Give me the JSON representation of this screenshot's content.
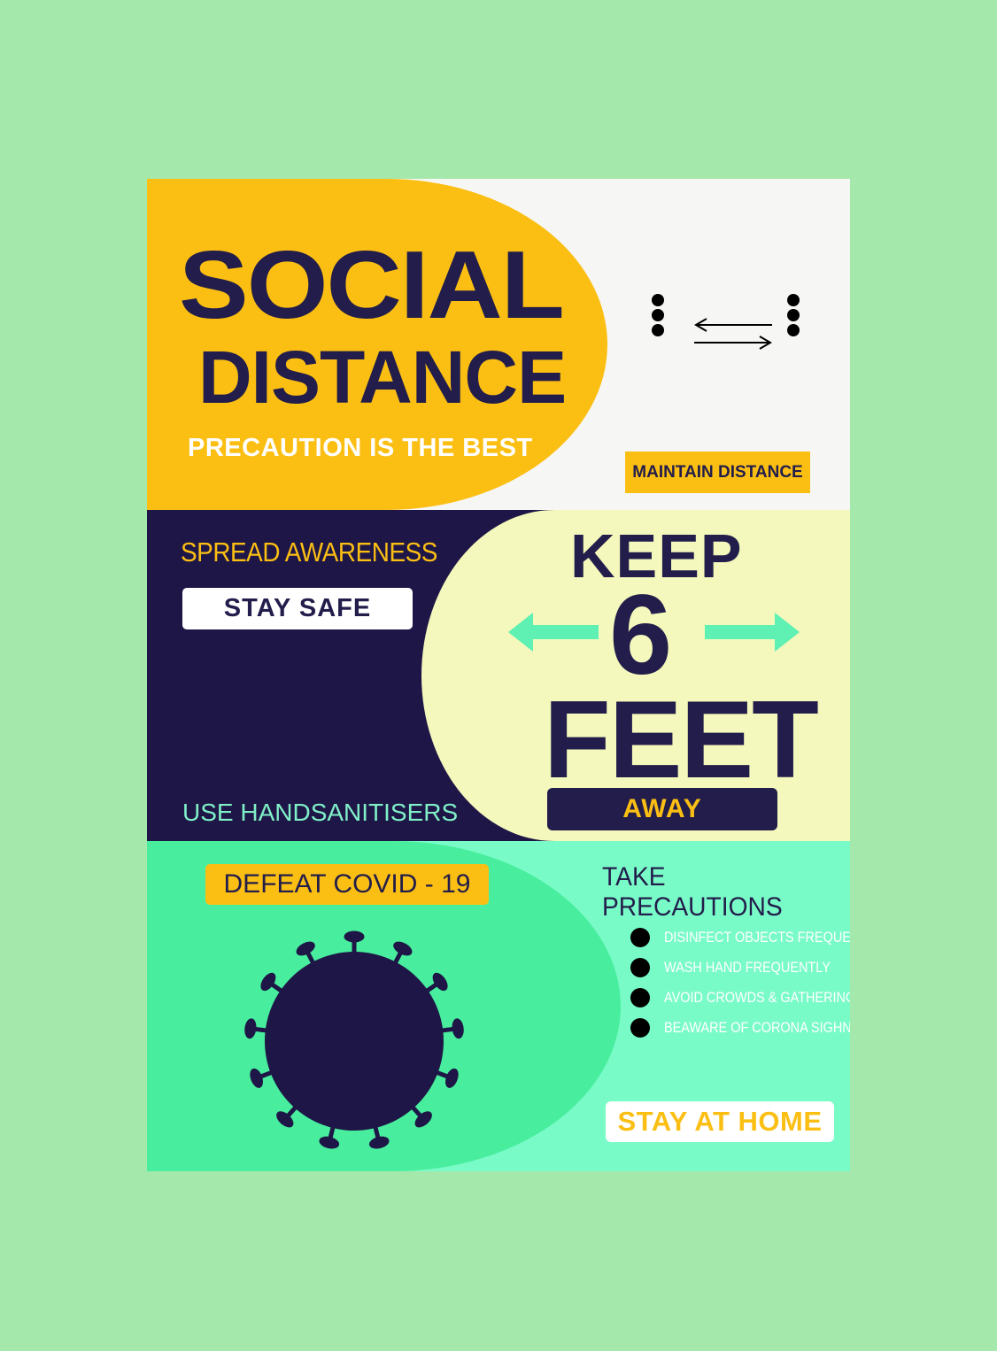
{
  "header": {
    "title_line1": "SOCIAL",
    "title_line2": "DISTANCE",
    "subtitle": "PRECAUTION IS THE BEST",
    "badge": "MAINTAIN DISTANCE"
  },
  "middle": {
    "left_heading": "SPREAD AWARENESS",
    "stay_safe_label": "STAY SAFE",
    "sanitiser_text": "USE HANDSANITISERS",
    "keep": "KEEP",
    "number": "6",
    "unit": "FEET",
    "away_label": "AWAY"
  },
  "bottom": {
    "defeat_label": "DEFEAT COVID - 19",
    "precautions_heading": "TAKE PRECAUTIONS",
    "precautions": [
      "DISINFECT OBJECTS FREQUENTLY",
      "WASH HAND  FREQUENTLY",
      "AVOID CROWDS  & GATHERING",
      "BEAWARE OF CORONA SIGHNS"
    ],
    "stay_home_label": "STAY AT HOME"
  },
  "colors": {
    "background": "#a5e8ac",
    "yellow": "#fbbf14",
    "navy": "#221d4a",
    "cream": "#f4f8bc",
    "green": "#48ee9e",
    "mint": "#79fbc8",
    "arrow": "#5ff0b4"
  },
  "icons": [
    "people-distance-icon",
    "double-arrow-icon",
    "virus-icon",
    "bullet-dot-icon"
  ]
}
